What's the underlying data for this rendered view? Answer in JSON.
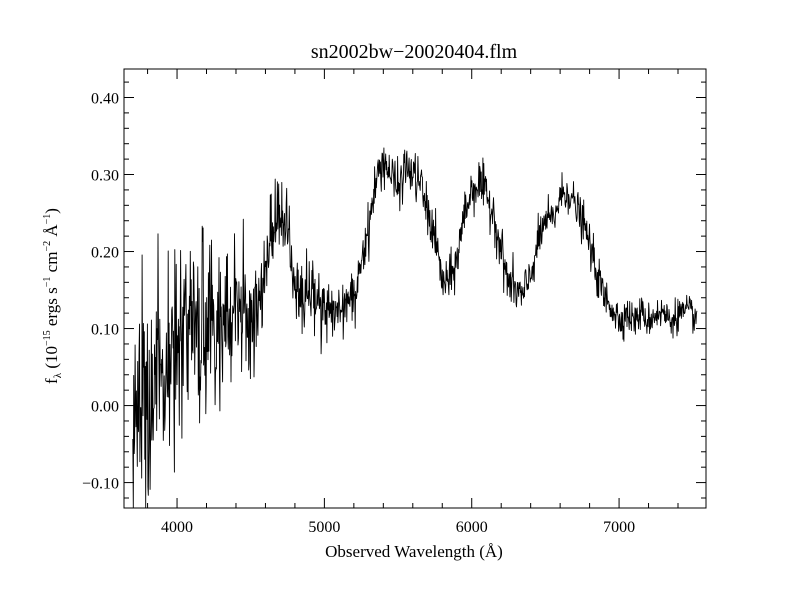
{
  "chart_data": {
    "type": "line",
    "title": "sn2002bw−20020404.flm",
    "xlabel": "Observed Wavelength (Å)",
    "ylabel_parts": {
      "f": "f",
      "lambda": "λ",
      "open": " (10",
      "exp1": "−15",
      "ergs": " ergs s",
      "exp2": "−1",
      "cm": " cm",
      "exp3": "−2",
      "ang": " Å",
      "exp4": "−1",
      "close": ")"
    },
    "xlim": [
      3640,
      7590
    ],
    "ylim": [
      -0.133,
      0.437
    ],
    "x_ticks": [
      4000,
      5000,
      6000,
      7000
    ],
    "x_tick_labels": [
      "4000",
      "5000",
      "6000",
      "7000"
    ],
    "y_ticks": [
      -0.1,
      0.0,
      0.1,
      0.2,
      0.3,
      0.4
    ],
    "y_tick_labels": [
      "−0.10",
      "0.00",
      "0.10",
      "0.20",
      "0.30",
      "0.40"
    ],
    "grid": false,
    "legend": "none",
    "line_color": "#000000",
    "series": [
      {
        "x": [
          3700,
          3750,
          3800,
          3850,
          3900,
          3950,
          4000,
          4050,
          4100,
          4150,
          4200,
          4250,
          4300,
          4350,
          4400,
          4450,
          4500,
          4550,
          4600,
          4650,
          4700,
          4750,
          4800,
          4850,
          4900,
          4950,
          5000,
          5050,
          5100,
          5150,
          5200,
          5250,
          5300,
          5350,
          5400,
          5450,
          5500,
          5550,
          5600,
          5650,
          5700,
          5750,
          5800,
          5850,
          5900,
          5950,
          6000,
          6050,
          6100,
          6150,
          6200,
          6250,
          6300,
          6350,
          6400,
          6450,
          6500,
          6550,
          6600,
          6650,
          6700,
          6750,
          6800,
          6850,
          6900,
          6950,
          7000,
          7050,
          7100,
          7150,
          7200,
          7250,
          7300,
          7350,
          7400,
          7450,
          7500,
          7530
        ],
        "y": [
          -0.02,
          0.0,
          0.02,
          0.03,
          0.05,
          0.06,
          0.07,
          0.08,
          0.09,
          0.09,
          0.1,
          0.11,
          0.1,
          0.11,
          0.12,
          0.12,
          0.11,
          0.13,
          0.17,
          0.23,
          0.25,
          0.23,
          0.16,
          0.14,
          0.15,
          0.14,
          0.12,
          0.13,
          0.12,
          0.14,
          0.13,
          0.19,
          0.23,
          0.29,
          0.32,
          0.3,
          0.28,
          0.31,
          0.3,
          0.29,
          0.25,
          0.22,
          0.16,
          0.16,
          0.19,
          0.25,
          0.28,
          0.29,
          0.27,
          0.25,
          0.2,
          0.16,
          0.15,
          0.14,
          0.17,
          0.21,
          0.24,
          0.24,
          0.27,
          0.28,
          0.26,
          0.24,
          0.21,
          0.17,
          0.14,
          0.13,
          0.11,
          0.12,
          0.11,
          0.12,
          0.11,
          0.12,
          0.12,
          0.11,
          0.12,
          0.12,
          0.12,
          0.11
        ]
      }
    ]
  }
}
